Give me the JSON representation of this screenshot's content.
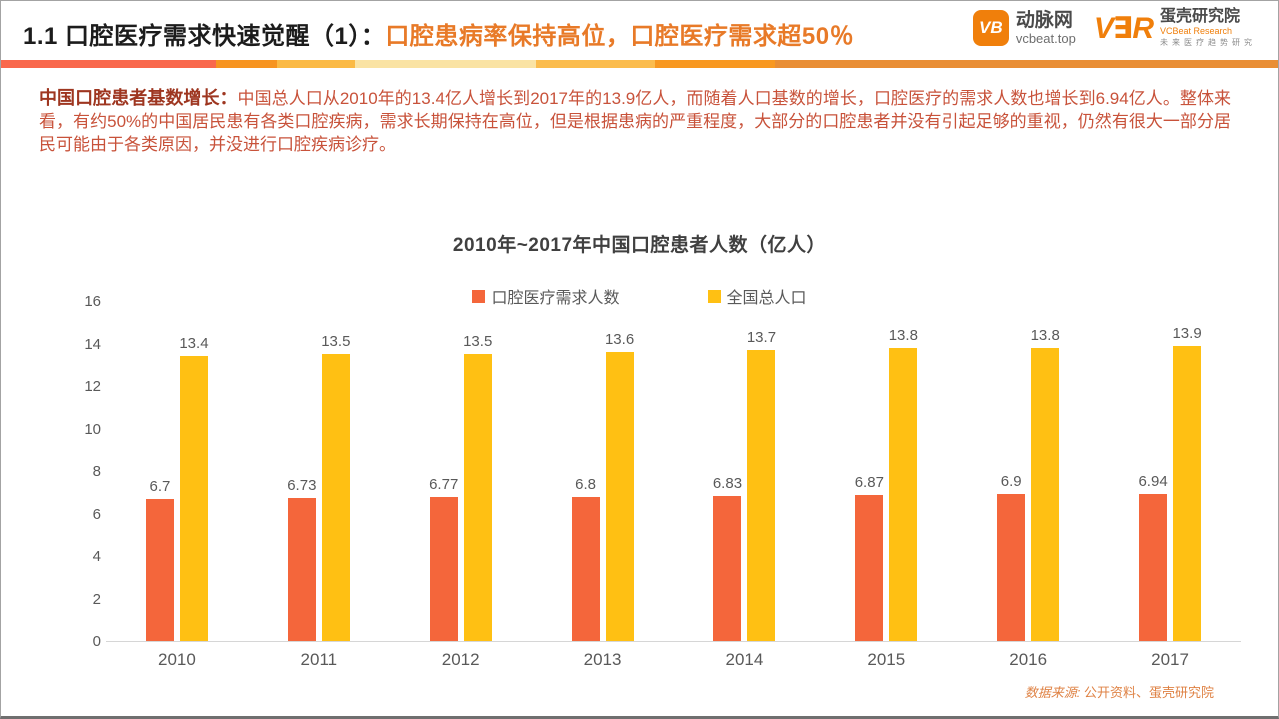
{
  "header": {
    "title_black": "1.1 口腔医疗需求快速觉醒（1）：",
    "title_orange": "口腔患病率保持高位，口腔医疗需求超50％",
    "logo_vcbeat": {
      "badge": "VB",
      "name": "动脉网",
      "domain": "vcbeat.top"
    },
    "logo_vbr": {
      "letters": "V∃R",
      "name": "蛋壳研究院",
      "sub": "VCBeat Research",
      "tagline": "未来医疗趋势研究"
    }
  },
  "divider_segments": [
    {
      "color": "#F9684C",
      "width": "16.8%"
    },
    {
      "color": "#F79420",
      "width": "4.8%"
    },
    {
      "color": "#FBBA45",
      "width": "6.1%"
    },
    {
      "color": "#FAE3A4",
      "width": "14.2%"
    },
    {
      "color": "#FBBC4D",
      "width": "9.3%"
    },
    {
      "color": "#F89820",
      "width": "9.4%"
    },
    {
      "color": "#E98E35",
      "width": "39.4%"
    }
  ],
  "intro": {
    "lead": "中国口腔患者基数增长：",
    "body": "中国总人口从2010年的13.4亿人增长到2017年的13.9亿人，而随着人口基数的增长，口腔医疗的需求人数也增长到6.94亿人。整体来看，有约50%的中国居民患有各类口腔疾病，需求长期保持在高位，但是根据患病的严重程度，大部分的口腔患者并没有引起足够的重视，仍然有很大一部分居民可能由于各类原因，并没进行口腔疾病诊疗。"
  },
  "chart_data": {
    "type": "bar",
    "title": "2010年~2017年中国口腔患者人数（亿人）",
    "categories": [
      "2010",
      "2011",
      "2012",
      "2013",
      "2014",
      "2015",
      "2016",
      "2017"
    ],
    "series": [
      {
        "name": "口腔医疗需求人数",
        "color": "#F4663B",
        "values": [
          6.7,
          6.73,
          6.77,
          6.8,
          6.83,
          6.87,
          6.9,
          6.94
        ]
      },
      {
        "name": "全国总人口",
        "color": "#FFC013",
        "values": [
          13.4,
          13.5,
          13.5,
          13.6,
          13.7,
          13.8,
          13.8,
          13.9
        ]
      }
    ],
    "ylim": [
      0,
      16
    ],
    "y_ticks": [
      0,
      2,
      4,
      6,
      8,
      10,
      12,
      14,
      16
    ],
    "grid": false,
    "legend_position": "top",
    "value_labels": true
  },
  "footer": {
    "source_lead": "数据来源: ",
    "source_body": "公开资料、蛋壳研究院"
  }
}
